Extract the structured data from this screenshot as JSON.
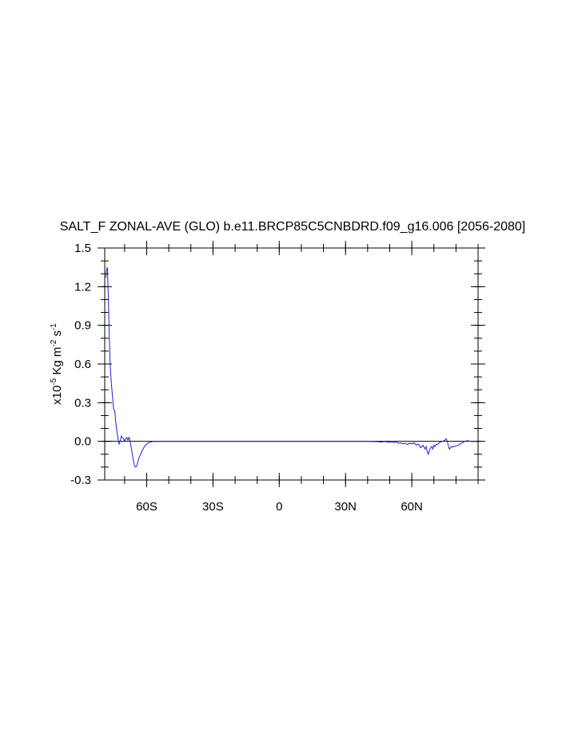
{
  "chart_data": {
    "type": "line",
    "title": "SALT_F ZONAL-AVE (GLO) b.e11.BRCP85C5CNBDRD.f09_g16.006 [2056-2080]",
    "ylabel_parts": {
      "base": "x10",
      "exp1": "-5",
      "unit1": " Kg m",
      "exp2": "-2",
      "unit2": " s",
      "exp3": "-1"
    },
    "xlim": [
      -79,
      90
    ],
    "ylim": [
      -0.3,
      1.5
    ],
    "x_ticks": [
      -60,
      -30,
      0,
      30,
      60
    ],
    "x_tick_labels": [
      "60S",
      "30S",
      "0",
      "30N",
      "60N"
    ],
    "y_ticks": [
      -0.3,
      0.0,
      0.3,
      0.6,
      0.9,
      1.2,
      1.5
    ],
    "y_tick_labels": [
      "-0.3",
      "0.0",
      "0.3",
      "0.6",
      "0.9",
      "1.2",
      "1.5"
    ],
    "reference_line_y": 0.0,
    "line_color": "#2020d0",
    "series": [
      {
        "x": [
          -78.5,
          -78.2,
          -77.8,
          -77.5,
          -77.2,
          -77.0,
          -76.5,
          -76.0,
          -75.5,
          -75.0,
          -74.5,
          -74.0,
          -73.5,
          -73.0,
          -72.5,
          -72.0,
          -71.5,
          -71.0,
          -70.5,
          -70.0,
          -69.5,
          -69.0,
          -68.5,
          -68.0,
          -67.5,
          -67.0,
          -66.5,
          -66.0,
          -65.5,
          -65.0,
          -64.5,
          -64.0,
          -63.5,
          -63.0,
          -62.5,
          -62.0,
          -61.5,
          -61.0,
          -60.5,
          -60.0,
          -59.0,
          -58.0,
          -57.0,
          -56.0,
          -55.0,
          -54.0,
          -53.0,
          -52.0,
          -50.0,
          -40.0,
          -20.0,
          0.0,
          20.0,
          40.0,
          44.0,
          46.0,
          48.0,
          50.0,
          51.0,
          52.0,
          53.0,
          54.0,
          55.0,
          56.0,
          57.0,
          58.0,
          59.0,
          60.0,
          61.0,
          62.0,
          63.0,
          64.0,
          65.0,
          66.0,
          66.5,
          67.0,
          67.5,
          68.0,
          68.5,
          69.0,
          69.5,
          70.0,
          70.5,
          71.0,
          72.0,
          72.5,
          73.0,
          74.0,
          75.0,
          75.5,
          76.0,
          76.5,
          77.0,
          77.5,
          78.0,
          78.5,
          79.0,
          80.0,
          81.0,
          82.0,
          83.0,
          84.0,
          85.0,
          86.0,
          87.0,
          88.0,
          89.0
        ],
        "y": [
          1.27,
          1.33,
          1.35,
          1.2,
          1.0,
          0.85,
          0.58,
          0.45,
          0.35,
          0.25,
          0.24,
          0.15,
          0.08,
          0.02,
          -0.02,
          0.0,
          0.04,
          0.03,
          0.02,
          0.0,
          0.02,
          0.03,
          0.01,
          0.03,
          0.0,
          -0.05,
          -0.1,
          -0.15,
          -0.19,
          -0.2,
          -0.19,
          -0.16,
          -0.13,
          -0.11,
          -0.09,
          -0.07,
          -0.055,
          -0.04,
          -0.03,
          -0.02,
          -0.01,
          -0.005,
          0.0,
          -0.002,
          0.0,
          -0.001,
          0.0,
          0.0,
          0.0,
          0.0,
          0.0,
          0.0,
          0.0,
          0.0,
          -0.003,
          -0.005,
          -0.002,
          -0.008,
          -0.003,
          -0.01,
          -0.005,
          -0.015,
          -0.012,
          -0.02,
          -0.015,
          -0.025,
          -0.015,
          -0.02,
          -0.01,
          -0.03,
          -0.02,
          -0.05,
          -0.03,
          -0.06,
          -0.04,
          -0.08,
          -0.1,
          -0.07,
          -0.05,
          -0.04,
          -0.06,
          -0.03,
          -0.04,
          -0.025,
          -0.02,
          -0.01,
          -0.005,
          0.0,
          0.01,
          0.02,
          0.005,
          -0.03,
          -0.06,
          -0.05,
          -0.04,
          -0.045,
          -0.04,
          -0.035,
          -0.03,
          -0.02,
          -0.01,
          0.0,
          0.005,
          0.002,
          0.0,
          0.0,
          0.0
        ]
      }
    ]
  }
}
